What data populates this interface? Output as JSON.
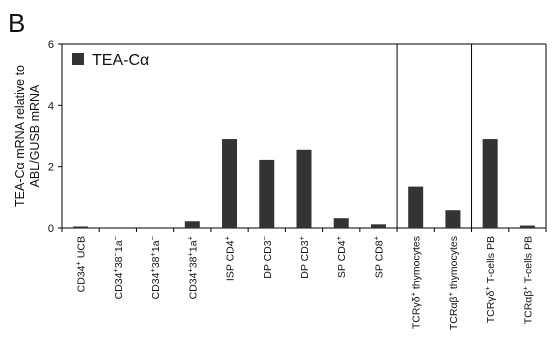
{
  "panel_label": "B",
  "chart_data": {
    "type": "bar",
    "ylabel_lines": [
      "TEA-Cα mRNA relative to",
      "ABL/GUSB mRNA"
    ],
    "ylim": [
      0,
      6
    ],
    "yticks": [
      "0",
      "2",
      "4",
      "6"
    ],
    "grid": false,
    "legend": {
      "position": "top-left",
      "entries": [
        {
          "label": "TEA-Cα",
          "color": "#333333"
        }
      ]
    },
    "bar_color": "#333333",
    "categories": [
      {
        "base": "CD34",
        "sup": "+",
        "rest": " UCB"
      },
      {
        "base": "CD34",
        "sup": "+",
        "rest": "38",
        "sup2": "−",
        "rest2": "1a",
        "sup3": "−"
      },
      {
        "base": "CD34",
        "sup": "+",
        "rest": "38",
        "sup2": "+",
        "rest2": "1a",
        "sup3": "−"
      },
      {
        "base": "CD34",
        "sup": "+",
        "rest": "38",
        "sup2": "+",
        "rest2": "1a",
        "sup3": "+"
      },
      {
        "base": "ISP CD4",
        "sup": "+",
        "rest": ""
      },
      {
        "base": "DP CD3",
        "sup": "−",
        "rest": ""
      },
      {
        "base": "DP CD3",
        "sup": "+",
        "rest": ""
      },
      {
        "base": "SP CD4",
        "sup": "+",
        "rest": ""
      },
      {
        "base": "SP CD8",
        "sup": "+",
        "rest": ""
      },
      {
        "base": "TCRγδ",
        "sup": "+",
        "rest": " thymocytes"
      },
      {
        "base": "TCRαβ",
        "sup": "+",
        "rest": " thymocytes"
      },
      {
        "base": "TCRγδ",
        "sup": "+",
        "rest": " T-cells PB"
      },
      {
        "base": "TCRαβ",
        "sup": "+",
        "rest": " T-cells PB"
      }
    ],
    "values": [
      0.05,
      0.0,
      0.0,
      0.22,
      2.9,
      2.22,
      2.55,
      0.32,
      0.12,
      1.35,
      0.58,
      2.9,
      0.08
    ],
    "group_separators_after_index": [
      8,
      10
    ]
  }
}
